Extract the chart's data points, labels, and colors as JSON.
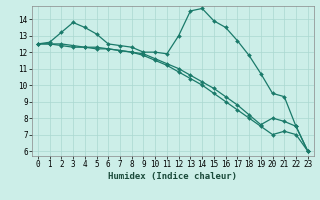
{
  "xlabel": "Humidex (Indice chaleur)",
  "background_color": "#cceee8",
  "grid_color": "#aad8d0",
  "line_color": "#1a7a6a",
  "xlim": [
    -0.5,
    23.5
  ],
  "ylim": [
    5.7,
    14.8
  ],
  "yticks": [
    6,
    7,
    8,
    9,
    10,
    11,
    12,
    13,
    14
  ],
  "xticks": [
    0,
    1,
    2,
    3,
    4,
    5,
    6,
    7,
    8,
    9,
    10,
    11,
    12,
    13,
    14,
    15,
    16,
    17,
    18,
    19,
    20,
    21,
    22,
    23
  ],
  "line1_x": [
    0,
    1,
    2,
    3,
    4,
    5,
    6,
    7,
    8,
    9,
    10,
    11,
    12,
    13,
    14,
    15,
    16,
    17,
    18,
    19,
    20,
    21,
    22,
    23
  ],
  "line1_y": [
    12.5,
    12.6,
    13.2,
    13.8,
    13.5,
    13.1,
    12.5,
    12.4,
    12.3,
    12.0,
    12.0,
    11.9,
    13.0,
    14.5,
    14.65,
    13.9,
    13.5,
    12.7,
    11.8,
    10.7,
    9.5,
    9.3,
    7.5,
    6.0
  ],
  "line2_x": [
    0,
    1,
    2,
    3,
    4,
    5,
    6,
    7,
    8,
    9,
    10,
    11,
    12,
    13,
    14,
    15,
    16,
    17,
    18,
    19,
    20,
    21,
    22,
    23
  ],
  "line2_y": [
    12.5,
    12.5,
    12.5,
    12.4,
    12.3,
    12.3,
    12.2,
    12.1,
    12.0,
    11.8,
    11.5,
    11.2,
    10.8,
    10.4,
    10.0,
    9.5,
    9.0,
    8.5,
    8.0,
    7.5,
    7.0,
    7.2,
    7.0,
    6.0
  ],
  "line3_x": [
    0,
    1,
    2,
    3,
    4,
    5,
    6,
    7,
    8,
    9,
    10,
    11,
    12,
    13,
    14,
    15,
    16,
    17,
    18,
    19,
    20,
    21,
    22,
    23
  ],
  "line3_y": [
    12.5,
    12.5,
    12.4,
    12.3,
    12.3,
    12.2,
    12.2,
    12.1,
    12.0,
    11.9,
    11.6,
    11.3,
    11.0,
    10.6,
    10.2,
    9.8,
    9.3,
    8.8,
    8.2,
    7.6,
    8.0,
    7.8,
    7.5,
    6.0
  ],
  "tick_fontsize": 5.5,
  "xlabel_fontsize": 6.5
}
